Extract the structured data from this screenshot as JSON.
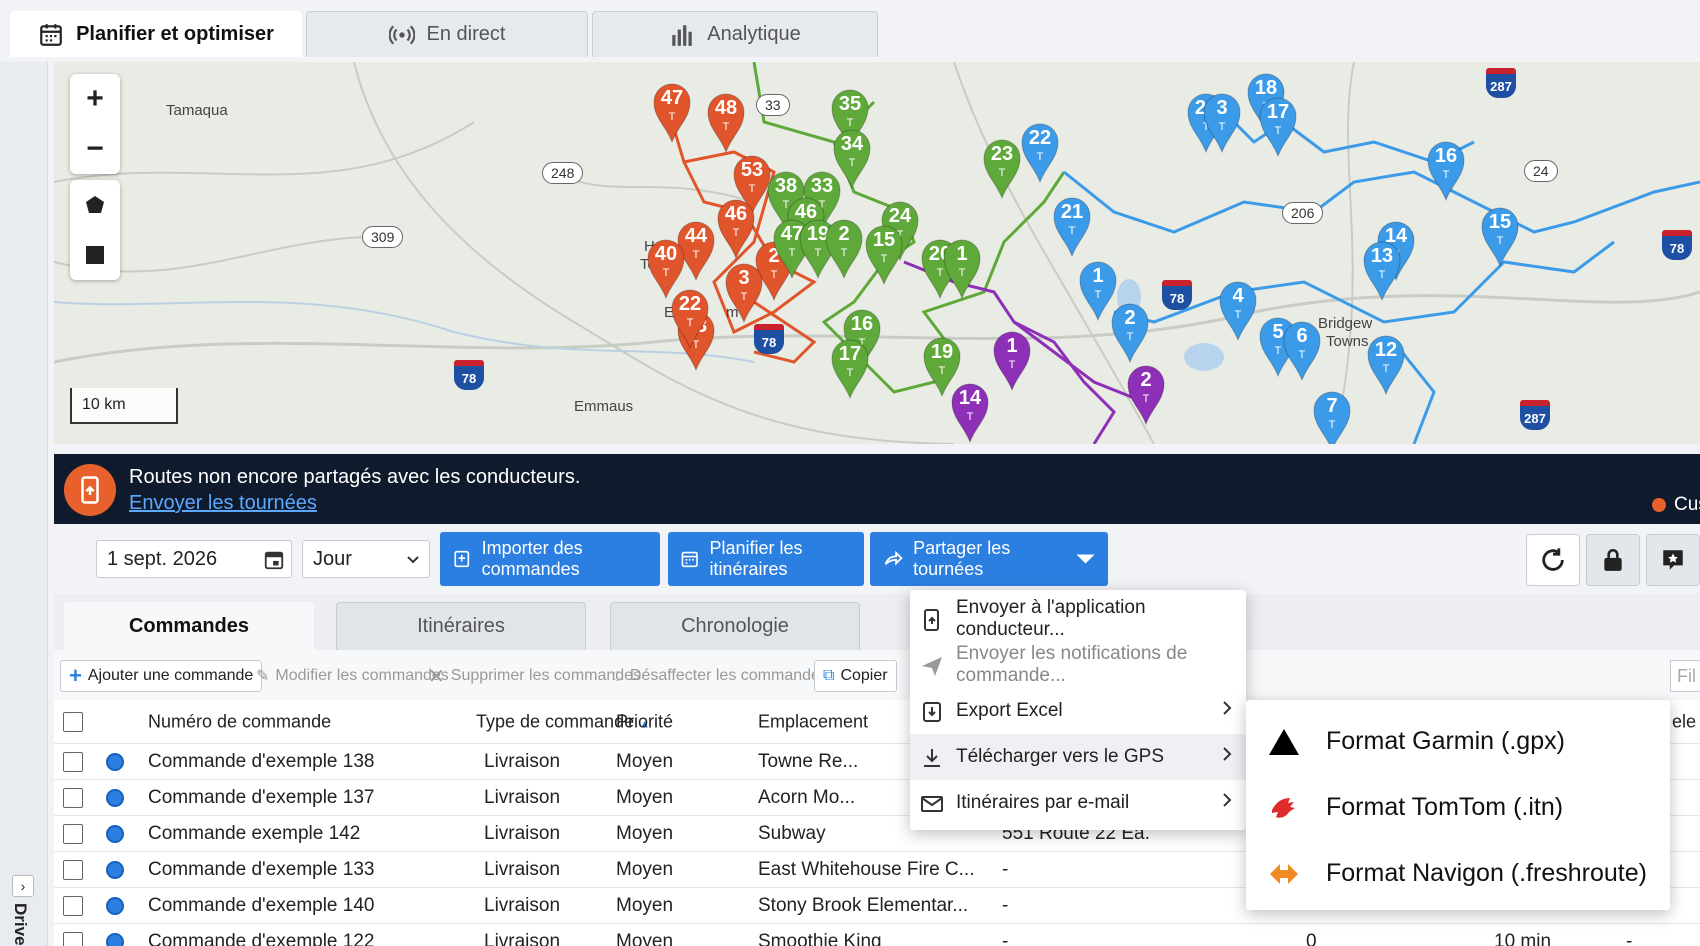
{
  "top_tabs": [
    {
      "label": "Planifier et optimiser",
      "icon": "calendar-icon",
      "active": true
    },
    {
      "label": "En direct",
      "icon": "broadcast-icon",
      "active": false
    },
    {
      "label": "Analytique",
      "icon": "bar-chart-icon",
      "active": false
    }
  ],
  "left_panel": {
    "label": "Drive",
    "toggle": "›"
  },
  "map": {
    "scale": "10 km",
    "zoom_in": "+",
    "zoom_out": "−",
    "places": [
      "Tamaqua",
      "Bridgew",
      "Towns",
      "H",
      "To",
      "E",
      "m",
      "Emmaus"
    ],
    "route_shields": [
      "248",
      "309",
      "206",
      "33",
      "24"
    ],
    "interstates": [
      "78",
      "78",
      "78",
      "78",
      "287",
      "287"
    ],
    "markers": {
      "red": [
        "47",
        "48",
        "53",
        "46",
        "44",
        "2",
        "3",
        "23",
        "22",
        "40"
      ],
      "green": [
        "35",
        "34",
        "38",
        "33",
        "46",
        "47",
        "19",
        "2",
        "24",
        "15",
        "16",
        "17",
        "19",
        "20",
        "1",
        "23"
      ],
      "blue": [
        "22",
        "20",
        "3",
        "18",
        "17",
        "16",
        "21",
        "1",
        "2",
        "15",
        "14",
        "13",
        "4",
        "5",
        "6",
        "12",
        "7"
      ],
      "purple": [
        "1",
        "2",
        "14"
      ],
      "sub_label": "T"
    },
    "colors": {
      "red": "#e0552b",
      "green": "#5fa83a",
      "blue": "#3c9be8",
      "purple": "#8e2fb8"
    }
  },
  "banner": {
    "text": "Routes non encore partagés avec les conducteurs.",
    "link": "Envoyer les tournées",
    "right_label": "Cus"
  },
  "toolbar": {
    "date": "1 sept. 2026",
    "period": "Jour",
    "import_label": "Importer des commandes",
    "plan_label": "Planifier les itinéraires",
    "share_label": "Partager les tournées"
  },
  "sub_tabs": [
    "Commandes",
    "Itinéraires",
    "Chronologie"
  ],
  "actions": {
    "add": "Ajouter une commande",
    "edit": "Modifier les commandes",
    "delete": "Supprimer les commandes",
    "unassign": "Désaffecter les commandes",
    "copy": "Copier",
    "filter_placeholder": "Fil"
  },
  "table": {
    "headers": [
      "Numéro de commande",
      "Type de commande",
      "Priorité",
      "Emplacement",
      "ele t"
    ],
    "rows": [
      {
        "name": "Commande d'exemple 138",
        "type": "Livraison",
        "priority": "Moyen",
        "location": "Towne Re...",
        "address": "",
        "stops": "",
        "duration": "",
        "extra": ""
      },
      {
        "name": "Commande d'exemple 137",
        "type": "Livraison",
        "priority": "Moyen",
        "location": "Acorn Mo...",
        "address": "",
        "stops": "",
        "duration": "",
        "extra": ""
      },
      {
        "name": "Commande exemple 142",
        "type": "Livraison",
        "priority": "Moyen",
        "location": "Subway",
        "address": "551 Route 22 Ea.",
        "stops": "",
        "duration": "",
        "extra": ""
      },
      {
        "name": "Commande d'exemple 133",
        "type": "Livraison",
        "priority": "Moyen",
        "location": "East Whitehouse Fire C...",
        "address": "-",
        "stops": "",
        "duration": "",
        "extra": ""
      },
      {
        "name": "Commande d'exemple 140",
        "type": "Livraison",
        "priority": "Moyen",
        "location": "Stony Brook Elementar...",
        "address": "-",
        "stops": "",
        "duration": "",
        "extra": ""
      },
      {
        "name": "Commande d'exemple 122",
        "type": "Livraison",
        "priority": "Moyen",
        "location": "Smoothie King",
        "address": "-",
        "stops": "0",
        "duration": "10 min",
        "extra": "-"
      }
    ]
  },
  "dropdown": {
    "items": [
      {
        "label": "Envoyer à l'application conducteur...",
        "icon": "phone-send-icon",
        "disabled": false,
        "submenu": false
      },
      {
        "label": "Envoyer les notifications de commande...",
        "icon": "paper-plane-icon",
        "disabled": true,
        "submenu": false
      },
      {
        "label": "Export Excel",
        "icon": "export-icon",
        "disabled": false,
        "submenu": true
      },
      {
        "label": "Télécharger vers le GPS",
        "icon": "download-icon",
        "disabled": false,
        "submenu": true,
        "highlighted": true
      },
      {
        "label": "Itinéraires par e-mail",
        "icon": "envelope-icon",
        "disabled": false,
        "submenu": true
      }
    ]
  },
  "submenu": {
    "items": [
      {
        "label": "Format Garmin (.gpx)",
        "icon": "garmin-icon"
      },
      {
        "label": "Format TomTom (.itn)",
        "icon": "tomtom-icon"
      },
      {
        "label": "Format Navigon (.freshroute)",
        "icon": "navigon-icon"
      }
    ]
  }
}
